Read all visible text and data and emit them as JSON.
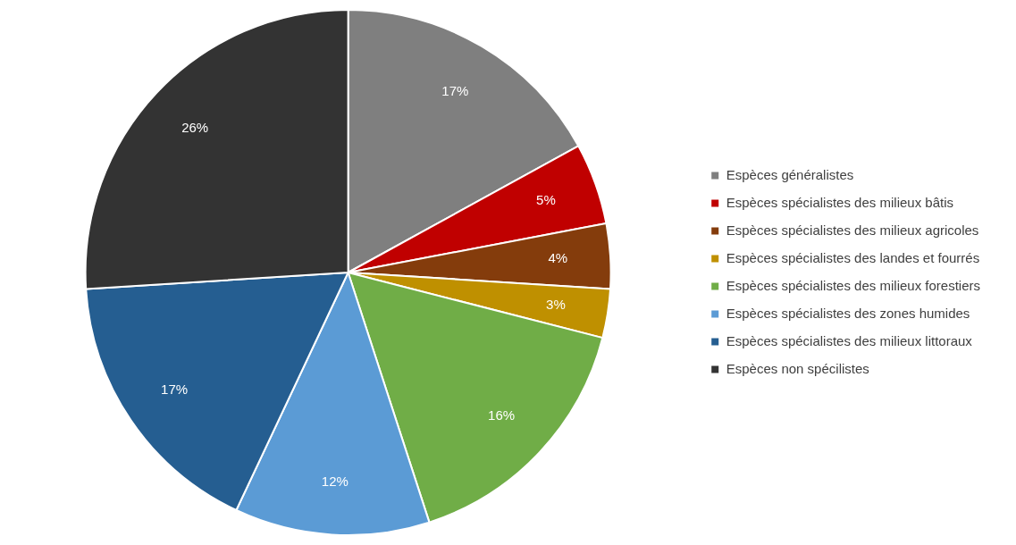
{
  "chart_data": {
    "type": "pie",
    "categories": [
      "Espèces généralistes",
      "Espèces spécialistes des milieux bâtis",
      "Espèces spécialistes des milieux agricoles",
      "Espèces spécialistes des landes et fourrés",
      "Espèces spécialistes des milieux forestiers",
      "Espèces spécialistes des zones humides",
      "Espèces spécialistes des milieux littoraux",
      "Espèces non spécilistes"
    ],
    "values": [
      17,
      5,
      4,
      3,
      16,
      12,
      17,
      26
    ],
    "colors": [
      "#7f7f7f",
      "#c00000",
      "#843c0c",
      "#bf9000",
      "#70ad47",
      "#5b9bd5",
      "#255e91",
      "#333333"
    ],
    "value_labels": [
      "17%",
      "5%",
      "4%",
      "3%",
      "16%",
      "12%",
      "17%",
      "26%"
    ],
    "legend": "right"
  }
}
